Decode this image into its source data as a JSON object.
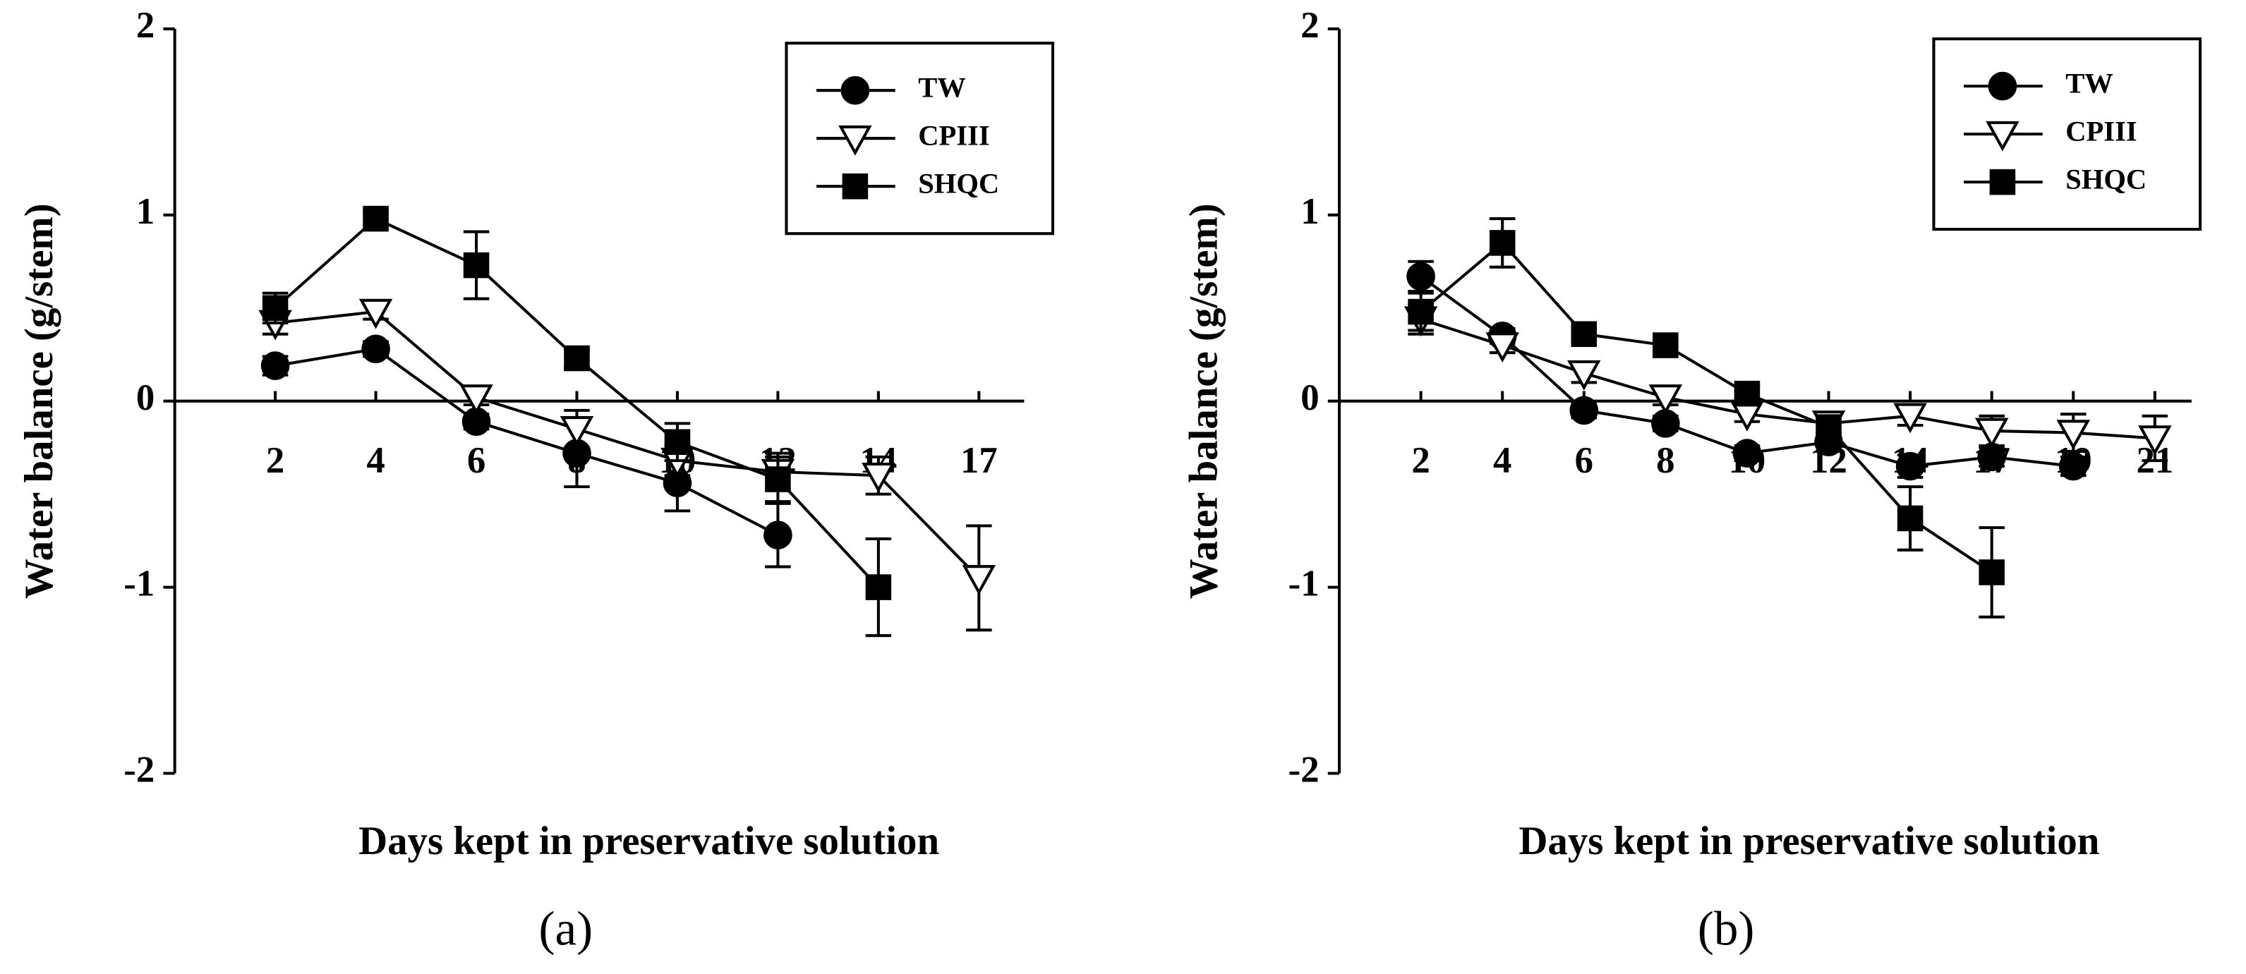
{
  "chart_data": [
    {
      "type": "line",
      "label": "(a)",
      "ylabel": "Water balance (g/stem)",
      "xlabel": "Days kept in preservative solution",
      "categories": [
        "2",
        "4",
        "6",
        "8",
        "10",
        "12",
        "14",
        "17"
      ],
      "ylim": [
        -2,
        2
      ],
      "yticks": [
        -2,
        -1,
        0,
        1,
        2
      ],
      "legend": "upper right",
      "series": [
        {
          "name": "TW",
          "marker": "circle",
          "color": "#000000",
          "values": [
            0.19,
            0.28,
            -0.11,
            -0.28,
            -0.44,
            -0.72,
            null,
            null
          ],
          "errors": [
            0.05,
            0.04,
            0.04,
            0.18,
            0.15,
            0.17,
            null,
            null
          ]
        },
        {
          "name": "CPIII",
          "marker": "triangle-down",
          "color": "#ffffff",
          "values": [
            0.42,
            0.48,
            0.02,
            -0.15,
            -0.32,
            -0.38,
            -0.4,
            -0.95
          ],
          "errors": [
            0.06,
            0.04,
            0.04,
            0.1,
            0.08,
            0.1,
            0.1,
            0.28
          ]
        },
        {
          "name": "SHQC",
          "marker": "square",
          "color": "#000000",
          "values": [
            0.5,
            0.98,
            0.73,
            0.23,
            -0.22,
            -0.42,
            -1.0,
            null
          ],
          "errors": [
            0.08,
            0.03,
            0.18,
            0.05,
            0.1,
            0.12,
            0.26,
            null
          ]
        }
      ]
    },
    {
      "type": "line",
      "label": "(b)",
      "ylabel": "Water balance (g/stem)",
      "xlabel": "Days kept in preservative solution",
      "categories": [
        "2",
        "4",
        "6",
        "8",
        "10",
        "12",
        "14",
        "17",
        "19",
        "21"
      ],
      "ylim": [
        -2,
        2
      ],
      "yticks": [
        -2,
        -1,
        0,
        1,
        2
      ],
      "legend": "upper right",
      "series": [
        {
          "name": "TW",
          "marker": "circle",
          "color": "#000000",
          "values": [
            0.67,
            0.35,
            -0.05,
            -0.12,
            -0.28,
            -0.22,
            -0.35,
            -0.3,
            -0.35,
            null
          ],
          "errors": [
            0.08,
            0.04,
            0.04,
            0.04,
            0.04,
            0.05,
            0.06,
            0.05,
            0.05,
            null
          ]
        },
        {
          "name": "CPIII",
          "marker": "triangle-down",
          "color": "#ffffff",
          "values": [
            0.44,
            0.3,
            0.15,
            0.02,
            -0.07,
            -0.12,
            -0.08,
            -0.16,
            -0.17,
            -0.2
          ],
          "errors": [
            0.08,
            0.04,
            0.05,
            0.04,
            0.04,
            0.05,
            0.05,
            0.08,
            0.1,
            0.12
          ]
        },
        {
          "name": "SHQC",
          "marker": "square",
          "color": "#000000",
          "values": [
            0.48,
            0.85,
            0.36,
            0.3,
            0.04,
            -0.14,
            -0.63,
            -0.92,
            null,
            null
          ],
          "errors": [
            0.1,
            0.13,
            0.04,
            0.03,
            0.04,
            0.05,
            0.17,
            0.24,
            null,
            null
          ]
        }
      ]
    }
  ]
}
